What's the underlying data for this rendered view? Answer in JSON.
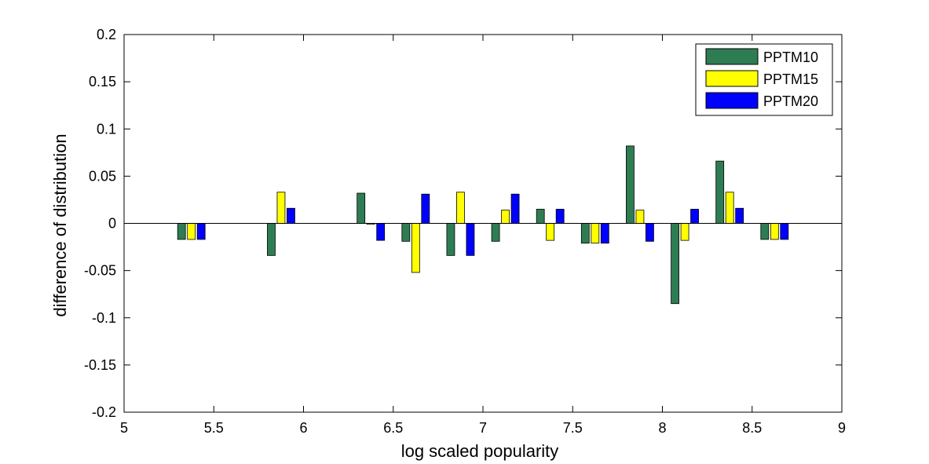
{
  "chart_data": {
    "type": "bar",
    "title": "",
    "xlabel": "log scaled popularity",
    "ylabel": "difference of distribution",
    "xlim": [
      5,
      9
    ],
    "ylim": [
      -0.2,
      0.2
    ],
    "xticks": [
      5,
      5.5,
      6,
      6.5,
      7,
      7.5,
      8,
      8.5,
      9
    ],
    "xtick_labels": [
      "5",
      "5.5",
      "6",
      "6.5",
      "7",
      "7.5",
      "8",
      "8.5",
      "9"
    ],
    "yticks": [
      -0.2,
      -0.15,
      -0.1,
      -0.05,
      0,
      0.05,
      0.1,
      0.15,
      0.2
    ],
    "ytick_labels": [
      "-0.2",
      "-0.15",
      "-0.1",
      "-0.05",
      "0",
      "0.05",
      "0.1",
      "0.15",
      "0.2"
    ],
    "grid": false,
    "legend_position": "top-right",
    "x": [
      5.375,
      5.875,
      6.375,
      6.625,
      6.875,
      7.125,
      7.375,
      7.625,
      7.875,
      8.125,
      8.375,
      8.625
    ],
    "series": [
      {
        "name": "PPTM10",
        "color": "#2e7d52",
        "values": [
          -0.017,
          -0.034,
          0.032,
          -0.019,
          -0.034,
          -0.019,
          0.015,
          -0.021,
          0.082,
          -0.085,
          0.066,
          -0.017
        ]
      },
      {
        "name": "PPTM15",
        "color": "#ffff00",
        "values": [
          -0.017,
          0.033,
          -0.001,
          -0.052,
          0.033,
          0.014,
          -0.018,
          -0.021,
          0.014,
          -0.018,
          0.033,
          -0.017
        ]
      },
      {
        "name": "PPTM20",
        "color": "#0000ff",
        "values": [
          -0.017,
          0.016,
          -0.018,
          0.031,
          -0.034,
          0.031,
          0.015,
          -0.021,
          -0.019,
          0.015,
          0.016,
          -0.017
        ]
      }
    ]
  }
}
